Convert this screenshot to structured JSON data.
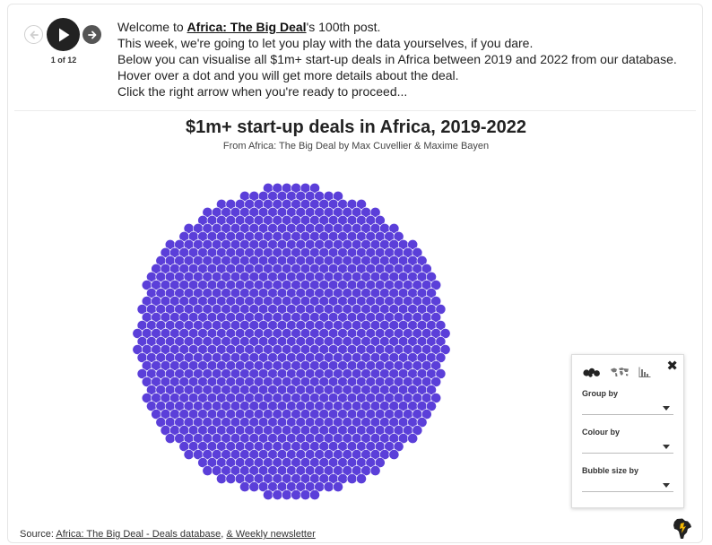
{
  "story": {
    "counter": "1 of 12"
  },
  "intro": {
    "line1_prefix": "Welcome to ",
    "line1_link": "Africa: The Big Deal",
    "line1_suffix": "'s 100th post.",
    "line2": "This week, we're going to let you play with the data yourselves, if you dare.",
    "line3": "Below you can visualise all $1m+ start-up deals in Africa between 2019 and 2022 from our database.",
    "line4": "Hover over a dot and you will get more details about the deal.",
    "line5": "Click the right arrow when you're ready to proceed..."
  },
  "chart": {
    "title": "$1m+ start-up deals in Africa, 2019-2022",
    "subtitle": "From Africa: The Big Deal by Max Cuvellier & Maxime Bayen"
  },
  "chart_data": {
    "type": "scatter",
    "title": "$1m+ start-up deals in Africa, 2019-2022",
    "subtitle": "From Africa: The Big Deal by Max Cuvellier & Maxime Bayen",
    "packing": "beeswarm-circle",
    "bubble_color": "#5b3fd9",
    "bubble_stroke": "#ffffff",
    "note": "each dot is one deal; dots are not labelled"
  },
  "controls": {
    "close": "✖",
    "view_icons": [
      "bubbles-icon",
      "map-icon",
      "bar-chart-icon"
    ],
    "group_by": {
      "label": "Group by",
      "value": ""
    },
    "colour_by": {
      "label": "Colour by",
      "value": ""
    },
    "size_by": {
      "label": "Bubble size by",
      "value": ""
    }
  },
  "footer": {
    "prefix": "Source: ",
    "link1": "Africa: The Big Deal - Deals database",
    "separator": ", ",
    "link2": "& Weekly newsletter"
  },
  "colors": {
    "accent": "#5b3fd9",
    "nav_dark": "#222222"
  }
}
